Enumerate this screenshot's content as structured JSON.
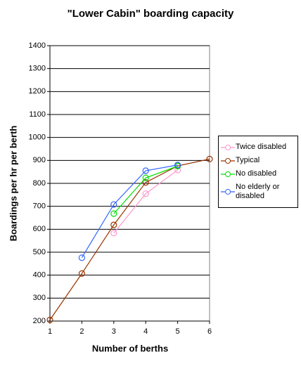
{
  "chart_data": {
    "type": "line",
    "title": "\"Lower Cabin\" boarding capacity",
    "x_label": "Number of berths",
    "y_label": "Boardings per hr per berth",
    "x": [
      1,
      2,
      3,
      4,
      5,
      6
    ],
    "series": [
      {
        "name": "Twice disabled",
        "color": "#ff99cc",
        "values": [
          null,
          null,
          583,
          755,
          858,
          null
        ]
      },
      {
        "name": "Typical",
        "color": "#993300",
        "values": [
          205,
          407,
          619,
          804,
          876,
          906
        ]
      },
      {
        "name": "No disabled",
        "color": "#00e000",
        "values": [
          null,
          null,
          668,
          824,
          875,
          null
        ]
      },
      {
        "name": "No elderly or disabled",
        "color": "#3366ff",
        "values": [
          null,
          476,
          708,
          855,
          880,
          null
        ]
      }
    ],
    "xlim": [
      1,
      6
    ],
    "xticks": [
      1,
      2,
      3,
      4,
      5,
      6
    ],
    "ylim": [
      200,
      1400
    ],
    "yticks": [
      200,
      300,
      400,
      500,
      600,
      700,
      800,
      900,
      1000,
      1100,
      1200,
      1300,
      1400
    ],
    "grid": true,
    "legend": "right"
  }
}
